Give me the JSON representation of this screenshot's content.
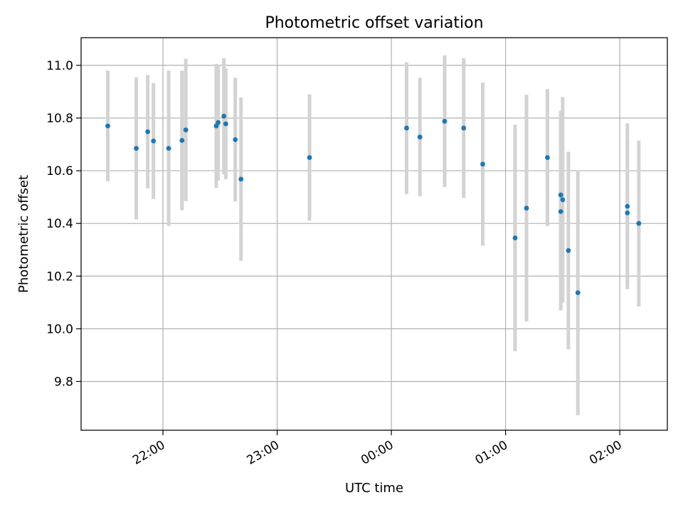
{
  "chart_data": {
    "type": "scatter",
    "title": "Photometric offset variation",
    "xlabel": "UTC time",
    "ylabel": "Photometric offset",
    "x_unit": "UTC time (HH:MM), points spanning 21:30 to 02:15",
    "xlim": [
      "21:17",
      "02:25"
    ],
    "ylim": [
      9.615,
      11.105
    ],
    "x_ticks": [
      "22:00",
      "23:00",
      "00:00",
      "01:00",
      "02:00"
    ],
    "y_ticks": [
      9.8,
      10.0,
      10.2,
      10.4,
      10.6,
      10.8,
      11.0
    ],
    "grid": true,
    "legend": "none",
    "colors": {
      "point": "#1f77b4",
      "errorbar": "#d3d3d3",
      "grid": "#b0b0b0"
    },
    "points": [
      {
        "x": "21:31",
        "y": 10.77,
        "err": 0.21
      },
      {
        "x": "21:46",
        "y": 10.685,
        "err": 0.27
      },
      {
        "x": "21:52",
        "y": 10.748,
        "err": 0.215
      },
      {
        "x": "21:55",
        "y": 10.713,
        "err": 0.22
      },
      {
        "x": "22:03",
        "y": 10.685,
        "err": 0.295
      },
      {
        "x": "22:10",
        "y": 10.715,
        "err": 0.265
      },
      {
        "x": "22:12",
        "y": 10.755,
        "err": 0.27
      },
      {
        "x": "22:28",
        "y": 10.77,
        "err": 0.235
      },
      {
        "x": "22:29",
        "y": 10.783,
        "err": 0.22
      },
      {
        "x": "22:32",
        "y": 10.807,
        "err": 0.22
      },
      {
        "x": "22:33",
        "y": 10.778,
        "err": 0.21
      },
      {
        "x": "22:38",
        "y": 10.718,
        "err": 0.235
      },
      {
        "x": "22:41",
        "y": 10.568,
        "err": 0.31
      },
      {
        "x": "23:17",
        "y": 10.65,
        "err": 0.24
      },
      {
        "x": "00:08",
        "y": 10.762,
        "err": 0.25
      },
      {
        "x": "00:15",
        "y": 10.728,
        "err": 0.225
      },
      {
        "x": "00:28",
        "y": 10.788,
        "err": 0.25
      },
      {
        "x": "00:38",
        "y": 10.762,
        "err": 0.265
      },
      {
        "x": "00:48",
        "y": 10.625,
        "err": 0.31
      },
      {
        "x": "01:05",
        "y": 10.345,
        "err": 0.43
      },
      {
        "x": "01:11",
        "y": 10.458,
        "err": 0.43
      },
      {
        "x": "01:22",
        "y": 10.65,
        "err": 0.26
      },
      {
        "x": "01:29",
        "y": 10.508,
        "err": 0.32
      },
      {
        "x": "01:29",
        "y": 10.445,
        "err": 0.375
      },
      {
        "x": "01:30",
        "y": 10.49,
        "err": 0.39
      },
      {
        "x": "01:33",
        "y": 10.297,
        "err": 0.375
      },
      {
        "x": "01:38",
        "y": 10.137,
        "err": 0.465
      },
      {
        "x": "02:04",
        "y": 10.44,
        "err": 0.27
      },
      {
        "x": "02:04",
        "y": 10.465,
        "err": 0.315
      },
      {
        "x": "02:10",
        "y": 10.4,
        "err": 0.315
      }
    ]
  }
}
